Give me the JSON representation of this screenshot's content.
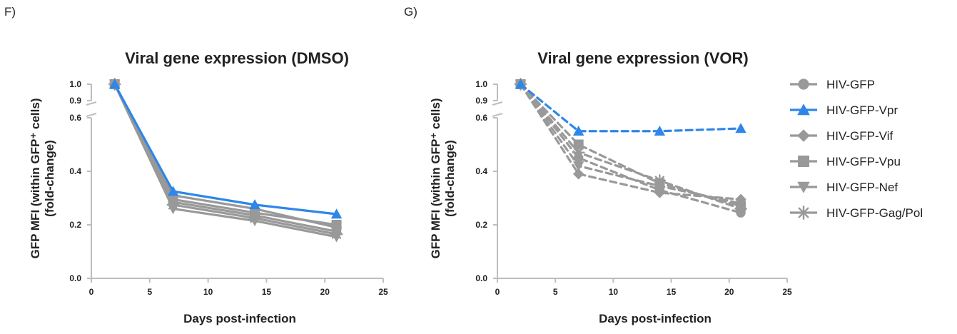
{
  "panel_labels": [
    "F)",
    "G)"
  ],
  "legend": [
    {
      "label": "HIV-GFP",
      "marker": "circle",
      "color": "#999999"
    },
    {
      "label": "HIV-GFP-Vpr",
      "marker": "triangle-up",
      "color": "#2e86e8"
    },
    {
      "label": "HIV-GFP-Vif",
      "marker": "diamond",
      "color": "#999999"
    },
    {
      "label": "HIV-GFP-Vpu",
      "marker": "square",
      "color": "#999999"
    },
    {
      "label": "HIV-GFP-Nef",
      "marker": "triangle-down",
      "color": "#999999"
    },
    {
      "label": "HIV-GFP-Gag/Pol",
      "marker": "asterisk",
      "color": "#999999"
    }
  ],
  "chart_data": [
    {
      "type": "line",
      "title": "Viral gene expression (DMSO)",
      "xlabel": "Days post-infection",
      "ylabel_line1": "GFP MFI (within GFP⁺ cells)",
      "ylabel_line2": "(fold-change)",
      "xlim": [
        0,
        25
      ],
      "xticks": [
        "0",
        "5",
        "10",
        "15",
        "20",
        "25"
      ],
      "ylim_lower": [
        0.0,
        0.6
      ],
      "ylim_upper": [
        0.9,
        1.0
      ],
      "yticks": [
        "0.0",
        "0.2",
        "0.4",
        "0.6",
        "0.9",
        "1.0"
      ],
      "line_style": "solid",
      "x": [
        2,
        7,
        14,
        21
      ],
      "series": [
        {
          "name": "HIV-GFP",
          "values": [
            1.0,
            0.285,
            0.235,
            0.175
          ]
        },
        {
          "name": "HIV-GFP-Vpr",
          "values": [
            1.0,
            0.325,
            0.275,
            0.24
          ]
        },
        {
          "name": "HIV-GFP-Vif",
          "values": [
            1.0,
            0.31,
            0.26,
            0.19
          ]
        },
        {
          "name": "HIV-GFP-Vpu",
          "values": [
            1.0,
            0.295,
            0.245,
            0.2
          ]
        },
        {
          "name": "HIV-GFP-Nef",
          "values": [
            1.0,
            0.26,
            0.215,
            0.155
          ]
        },
        {
          "name": "HIV-GFP-Gag/Pol",
          "values": [
            1.0,
            0.275,
            0.225,
            0.165
          ]
        }
      ]
    },
    {
      "type": "line",
      "title": "Viral gene expression (VOR)",
      "xlabel": "Days post-infection",
      "ylabel_line1": "GFP MFI (within GFP⁺ cells)",
      "ylabel_line2": "(fold-change)",
      "xlim": [
        0,
        25
      ],
      "xticks": [
        "0",
        "5",
        "10",
        "15",
        "20",
        "25"
      ],
      "ylim_lower": [
        0.0,
        0.6
      ],
      "ylim_upper": [
        0.9,
        1.0
      ],
      "yticks": [
        "0.0",
        "0.2",
        "0.4",
        "0.6",
        "0.9",
        "1.0"
      ],
      "line_style": "dashed",
      "x": [
        2,
        7,
        14,
        21
      ],
      "series": [
        {
          "name": "HIV-GFP",
          "values": [
            1.0,
            0.45,
            0.33,
            0.245
          ]
        },
        {
          "name": "HIV-GFP-Vpr",
          "values": [
            1.0,
            0.55,
            0.55,
            0.56
          ]
        },
        {
          "name": "HIV-GFP-Vif",
          "values": [
            1.0,
            0.39,
            0.32,
            0.295
          ]
        },
        {
          "name": "HIV-GFP-Vpu",
          "values": [
            1.0,
            0.5,
            0.355,
            0.27
          ]
        },
        {
          "name": "HIV-GFP-Nef",
          "values": [
            1.0,
            0.42,
            0.345,
            0.28
          ]
        },
        {
          "name": "HIV-GFP-Gag/Pol",
          "values": [
            1.0,
            0.47,
            0.365,
            0.26
          ]
        }
      ]
    }
  ]
}
